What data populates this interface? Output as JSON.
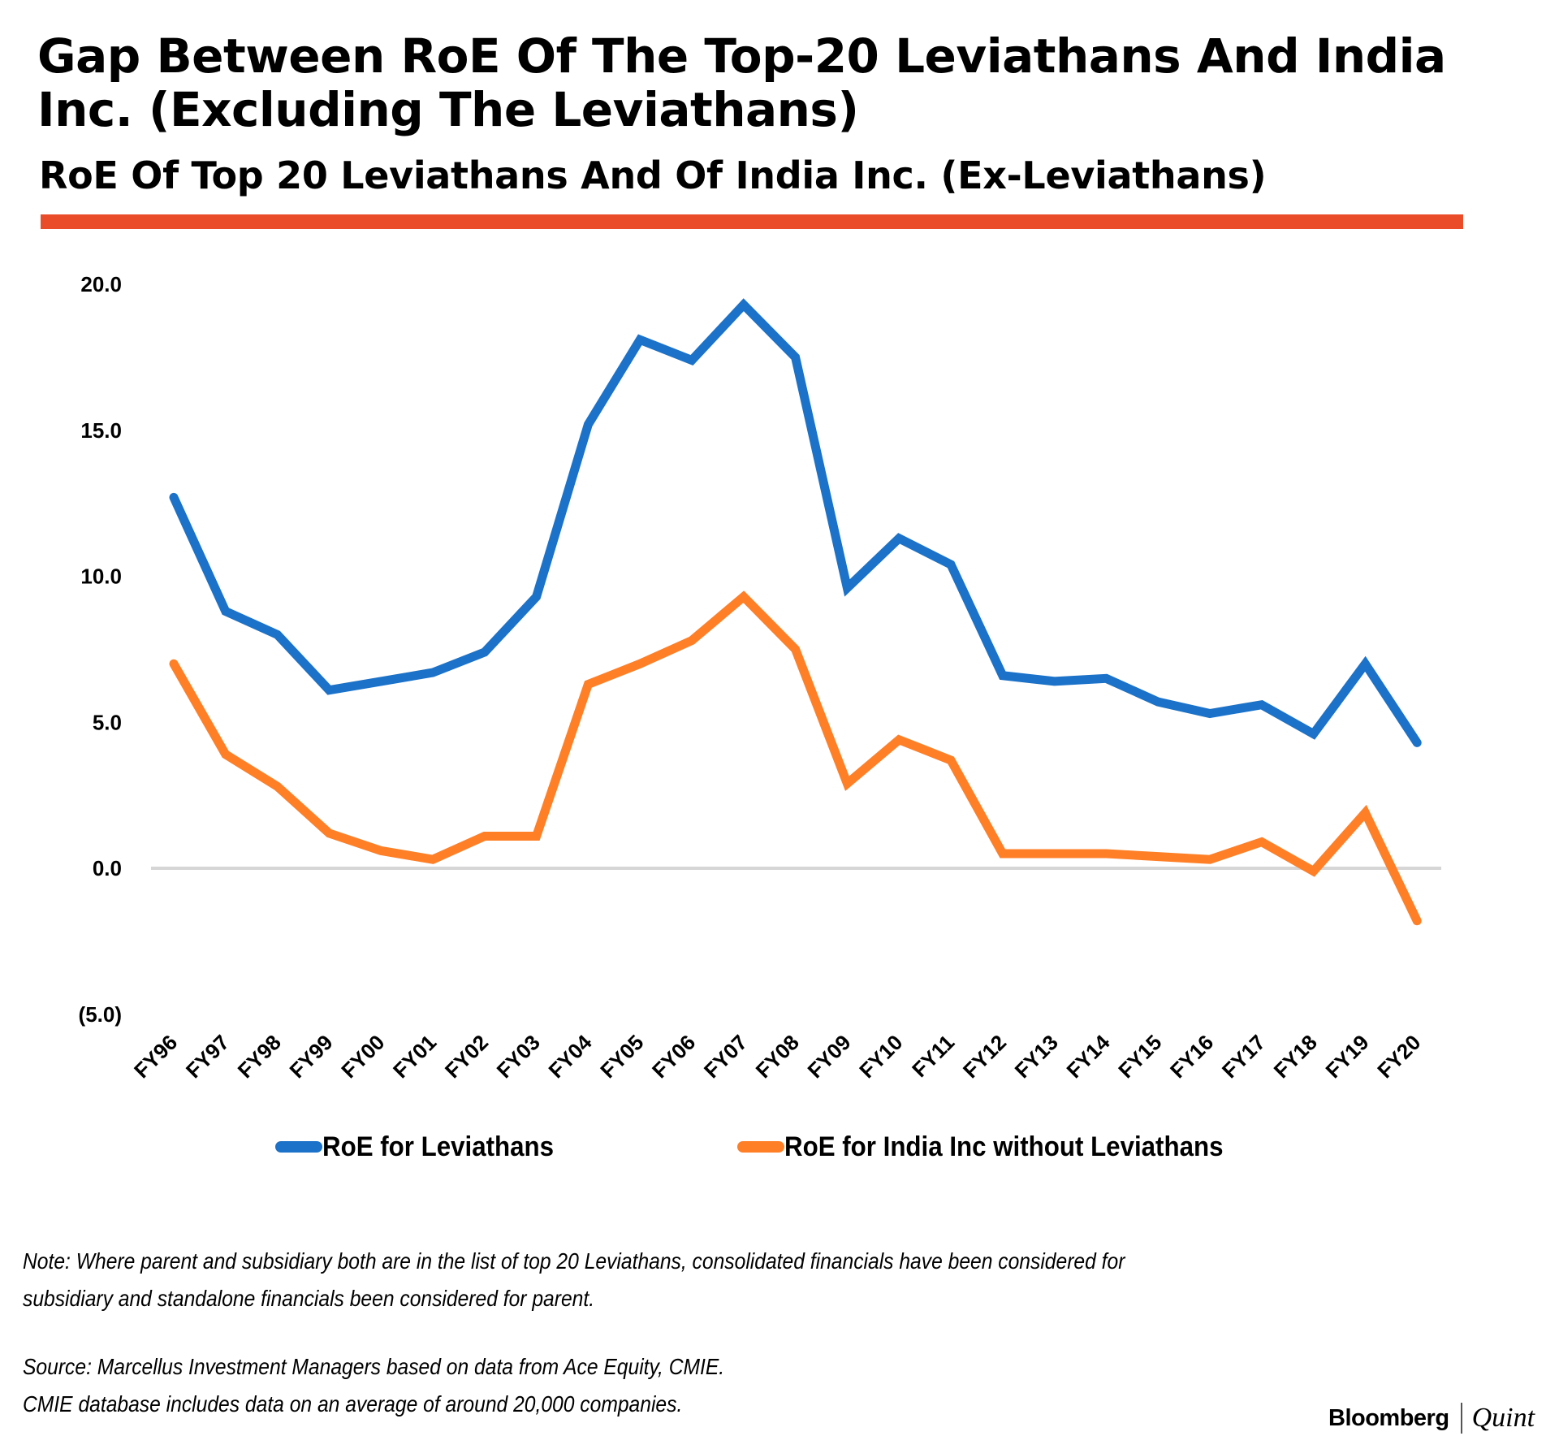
{
  "header": {
    "title": "Gap Between RoE Of The Top-20 Leviathans And India Inc. (Excluding The Leviathans)",
    "subtitle": "RoE Of Top 20 Leviathans And Of India Inc. (Ex-Leviathans)",
    "accent_color": "#EA4B29"
  },
  "chart_data": {
    "type": "line",
    "title": "RoE Of Top 20 Leviathans And Of India Inc. (Ex-Leviathans)",
    "xlabel": "",
    "ylabel": "",
    "ylim": [
      -5,
      20
    ],
    "yticks": [
      20,
      15,
      10,
      5,
      0,
      -5
    ],
    "ytick_labels": [
      "20.0",
      "15.0",
      "10.0",
      "5.0",
      "0.0",
      "(5.0)"
    ],
    "grid": "zero-line only",
    "legend_position": "bottom",
    "categories": [
      "FY96",
      "FY97",
      "FY98",
      "FY99",
      "FY00",
      "FY01",
      "FY02",
      "FY03",
      "FY04",
      "FY05",
      "FY06",
      "FY07",
      "FY08",
      "FY09",
      "FY10",
      "FY11",
      "FY12",
      "FY13",
      "FY14",
      "FY15",
      "FY16",
      "FY17",
      "FY18",
      "FY19",
      "FY20"
    ],
    "series": [
      {
        "name": "RoE for Leviathans",
        "color": "#1B72C8",
        "values": [
          12.7,
          8.8,
          8.0,
          6.1,
          6.4,
          6.7,
          7.4,
          9.3,
          15.2,
          18.1,
          17.4,
          19.3,
          17.5,
          9.6,
          11.3,
          10.4,
          6.6,
          6.4,
          6.5,
          5.7,
          5.3,
          5.6,
          4.6,
          7.0,
          4.3
        ]
      },
      {
        "name": "RoE for India Inc without Leviathans",
        "color": "#FF7F27",
        "values": [
          7.0,
          3.9,
          2.8,
          1.2,
          0.6,
          0.3,
          1.1,
          1.1,
          6.3,
          7.0,
          7.8,
          9.3,
          7.5,
          2.9,
          4.4,
          3.7,
          0.5,
          0.5,
          0.5,
          0.4,
          0.3,
          0.9,
          -0.1,
          1.9,
          -1.8
        ]
      }
    ]
  },
  "legend": {
    "items": [
      {
        "label": "RoE for Leviathans",
        "color": "#1B72C8"
      },
      {
        "label": "RoE for India Inc without Leviathans",
        "color": "#FF7F27"
      }
    ]
  },
  "footer": {
    "note_line1": "Note: Where parent and subsidiary both are in the list of top 20 Leviathans, consolidated financials have been considered for",
    "note_line2": "subsidiary and standalone financials been considered for parent.",
    "source_line1": "Source: Marcellus Investment Managers based on data from Ace Equity, CMIE.",
    "source_line2": "CMIE database includes data on an average of around 20,000 companies.",
    "logo_left": "Bloomberg",
    "logo_right": "Quint"
  }
}
